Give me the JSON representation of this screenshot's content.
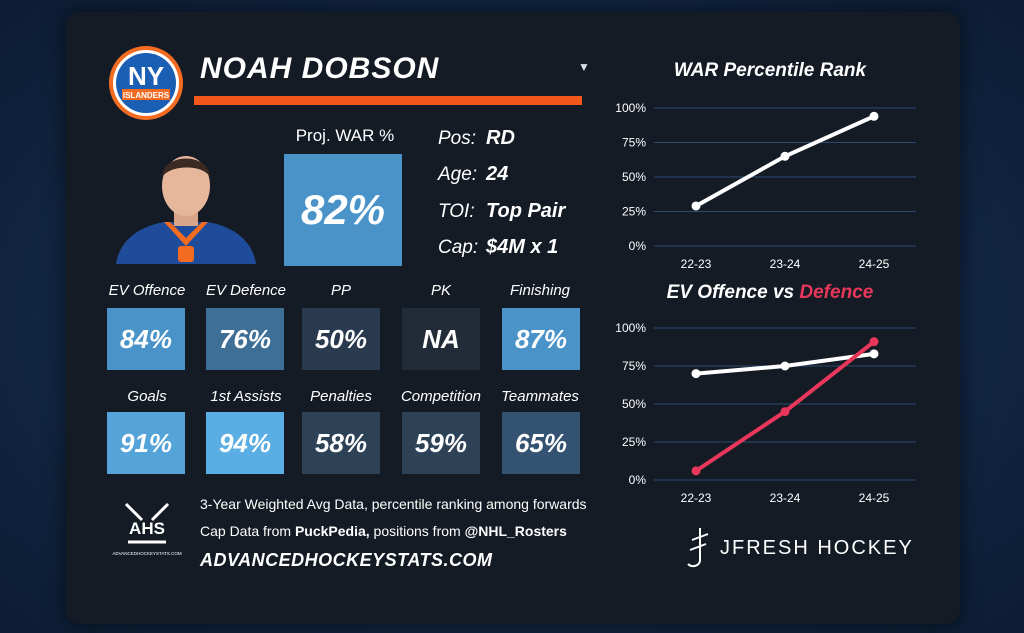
{
  "player": {
    "name": "NOAH DOBSON",
    "dropdown_icon": "chevron-down-icon",
    "team_logo": {
      "line1": "NY",
      "line2": "ISLANDERS"
    }
  },
  "war": {
    "label": "Proj. WAR %",
    "value": "82%"
  },
  "info": [
    {
      "key": "Pos:",
      "value": "RD"
    },
    {
      "key": "Age:",
      "value": "24"
    },
    {
      "key": "TOI:",
      "value": "Top Pair"
    },
    {
      "key": "Cap:",
      "value": "$4M x 1"
    }
  ],
  "stats_row1": [
    {
      "label": "EV Offence",
      "value": "84%",
      "color": "#4a93c9"
    },
    {
      "label": "EV Defence",
      "value": "76%",
      "color": "#3d6f97"
    },
    {
      "label": "PP",
      "value": "50%",
      "color": "#2a3a4e"
    },
    {
      "label": "PK",
      "value": "NA",
      "color": "#222c39"
    },
    {
      "label": "Finishing",
      "value": "87%",
      "color": "#4a93c9"
    }
  ],
  "stats_row2": [
    {
      "label": "Goals",
      "value": "91%",
      "color": "#55a4d9"
    },
    {
      "label": "1st Assists",
      "value": "94%",
      "color": "#5aaee3"
    },
    {
      "label": "Penalties",
      "value": "58%",
      "color": "#2d4157"
    },
    {
      "label": "Competition",
      "value": "59%",
      "color": "#2d4157"
    },
    {
      "label": "Teammates",
      "value": "65%",
      "color": "#345271"
    }
  ],
  "footer": {
    "ahs_badge": "AHS",
    "ahs_small": "ADVANCEDHOCKEYSTATS.COM",
    "line1": "3-Year Weighted Avg Data, percentile ranking among forwards",
    "line2_pre": "Cap Data from ",
    "line2_b1": "PuckPedia,",
    "line2_mid": " positions from ",
    "line2_b2": "@NHL_Rosters",
    "site": "ADVANCEDHOCKEYSTATS.COM",
    "brand": "JFRESH HOCKEY"
  },
  "chart_data": [
    {
      "type": "line",
      "title": "WAR Percentile Rank",
      "x": [
        "22-23",
        "23-24",
        "24-25"
      ],
      "series": [
        {
          "values": [
            29,
            65,
            94
          ],
          "color": "#ffffff"
        }
      ],
      "ylim": [
        0,
        100
      ],
      "yticks": [
        "0%",
        "25%",
        "50%",
        "75%",
        "100%"
      ],
      "grid": true
    },
    {
      "type": "line",
      "title": "EV Offence vs Defence",
      "title_part1": "EV Offence vs ",
      "title_part2": "Defence",
      "x": [
        "22-23",
        "23-24",
        "24-25"
      ],
      "series": [
        {
          "name": "EV Offence",
          "values": [
            70,
            75,
            83
          ],
          "color": "#ffffff"
        },
        {
          "name": "Defence",
          "values": [
            6,
            45,
            91
          ],
          "color": "#e8375a"
        }
      ],
      "ylim": [
        0,
        100
      ],
      "yticks": [
        "0%",
        "25%",
        "50%",
        "75%",
        "100%"
      ],
      "grid": true
    }
  ]
}
